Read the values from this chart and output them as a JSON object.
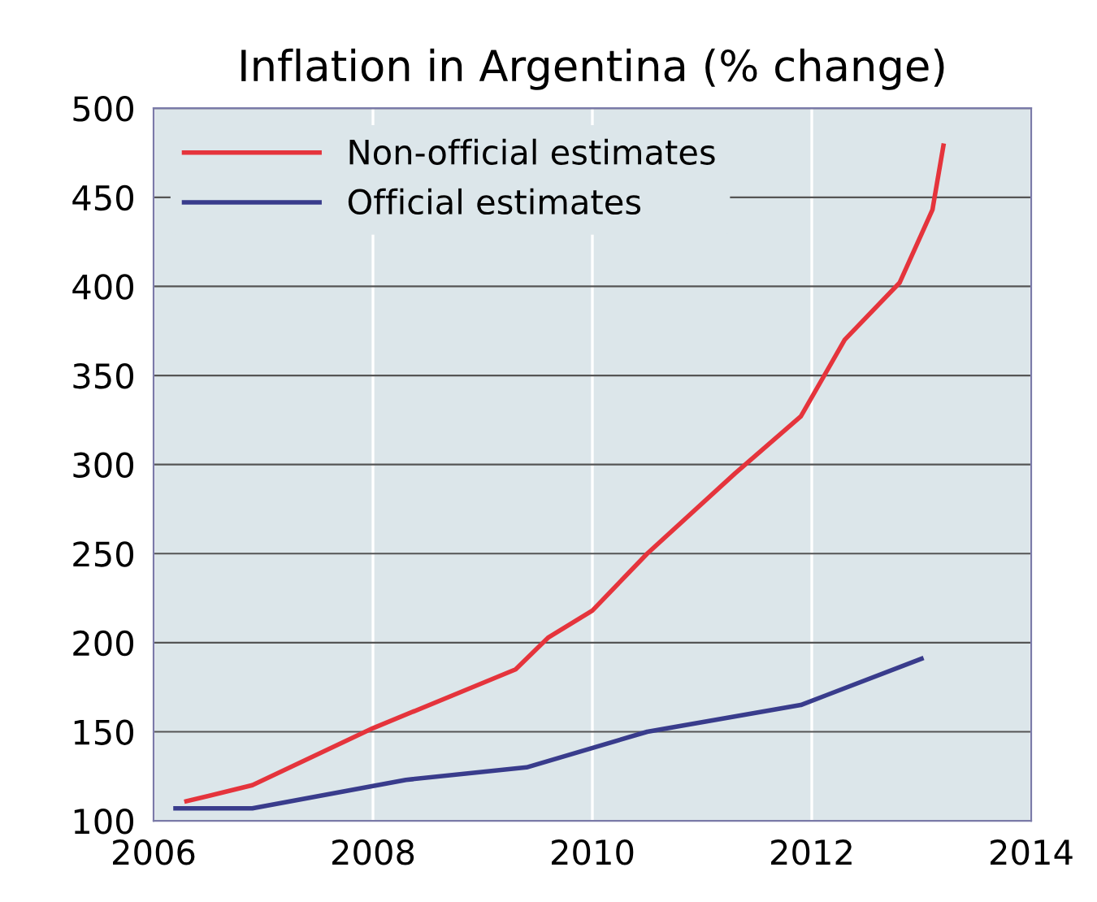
{
  "chart_data": {
    "type": "line",
    "title": "Inflation in Argentina (% change)",
    "series": [
      {
        "name": "Non-official estimates",
        "color": "#e5343c",
        "x": [
          2006.3,
          2006.9,
          2008.0,
          2009.3,
          2009.6,
          2010.0,
          2010.5,
          2011.3,
          2011.9,
          2012.3,
          2012.8,
          2013.1,
          2013.2
        ],
        "values": [
          111,
          120,
          152,
          185,
          203,
          218,
          250,
          295,
          327,
          370,
          402,
          443,
          479
        ]
      },
      {
        "name": "Official estimates",
        "color": "#393c8c",
        "x": [
          2006.2,
          2006.9,
          2008.3,
          2009.4,
          2010.5,
          2011.9,
          2013.0
        ],
        "values": [
          107,
          107,
          123,
          130,
          150,
          165,
          191
        ]
      }
    ],
    "xlim": [
      2006,
      2014
    ],
    "xticks": [
      2006,
      2008,
      2010,
      2012,
      2014
    ],
    "ylim": [
      100,
      500
    ],
    "yticks": [
      100,
      150,
      200,
      250,
      300,
      350,
      400,
      450,
      500
    ],
    "grid": true,
    "legend": "top left",
    "line_style": "solid",
    "marker": "none"
  }
}
